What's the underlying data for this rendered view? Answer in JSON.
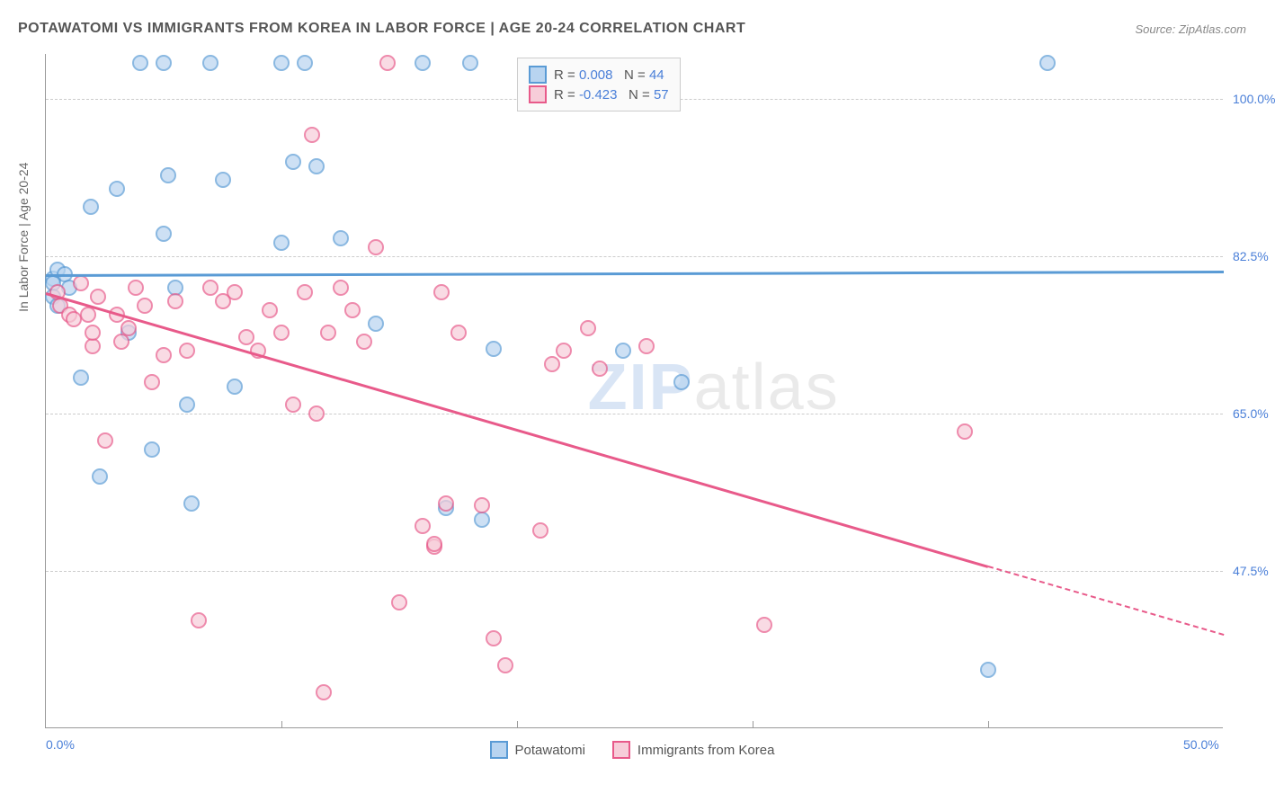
{
  "title": "POTAWATOMI VS IMMIGRANTS FROM KOREA IN LABOR FORCE | AGE 20-24 CORRELATION CHART",
  "source": "Source: ZipAtlas.com",
  "y_axis_label": "In Labor Force | Age 20-24",
  "watermark_zip": "ZIP",
  "watermark_atlas": "atlas",
  "chart": {
    "type": "scatter",
    "xlim": [
      0,
      50
    ],
    "ylim": [
      30,
      105
    ],
    "x_ticks": [
      0,
      50
    ],
    "x_tick_labels": [
      "0.0%",
      "50.0%"
    ],
    "y_ticks": [
      47.5,
      65.0,
      82.5,
      100.0
    ],
    "y_tick_labels": [
      "47.5%",
      "65.0%",
      "82.5%",
      "100.0%"
    ],
    "x_minor_ticks": [
      10,
      20,
      30,
      40
    ],
    "background_color": "#ffffff",
    "grid_color": "#cccccc",
    "axis_color": "#999999",
    "series": [
      {
        "name": "Potawatomi",
        "color_fill": "#b8d4f0",
        "color_stroke": "#5a9bd5",
        "r_value": "0.008",
        "n_value": "44",
        "trend": {
          "x1": 0,
          "y1": 80.5,
          "x2": 50,
          "y2": 80.9,
          "solid_end": 50
        },
        "points": [
          [
            0.3,
            80
          ],
          [
            0.3,
            79.5
          ],
          [
            0.3,
            78
          ],
          [
            0.5,
            77
          ],
          [
            0.5,
            81
          ],
          [
            0.8,
            80.5
          ],
          [
            1,
            79
          ],
          [
            1.5,
            69
          ],
          [
            1.9,
            88
          ],
          [
            2.3,
            58
          ],
          [
            3,
            90
          ],
          [
            3.5,
            74
          ],
          [
            4,
            104
          ],
          [
            4.5,
            61
          ],
          [
            5,
            104
          ],
          [
            5,
            85
          ],
          [
            5.2,
            91.5
          ],
          [
            5.5,
            79
          ],
          [
            6,
            66
          ],
          [
            6.2,
            55
          ],
          [
            7,
            104
          ],
          [
            7.5,
            91
          ],
          [
            8,
            68
          ],
          [
            10,
            104
          ],
          [
            10,
            84
          ],
          [
            10.5,
            93
          ],
          [
            11,
            104
          ],
          [
            11.5,
            92.5
          ],
          [
            12.5,
            84.5
          ],
          [
            14,
            75
          ],
          [
            16,
            104
          ],
          [
            17,
            54.5
          ],
          [
            18,
            104
          ],
          [
            18.5,
            53.2
          ],
          [
            19,
            72.2
          ],
          [
            24.5,
            72
          ],
          [
            27,
            68.5
          ],
          [
            40,
            36.5
          ],
          [
            42.5,
            104
          ]
        ]
      },
      {
        "name": "Immigrants from Korea",
        "color_fill": "#f7cdd9",
        "color_stroke": "#e85a8a",
        "r_value": "-0.423",
        "n_value": "57",
        "trend": {
          "x1": 0,
          "y1": 78.5,
          "x2": 50,
          "y2": 40.5,
          "solid_end": 40
        },
        "points": [
          [
            0.5,
            78.5
          ],
          [
            0.6,
            77
          ],
          [
            1,
            76
          ],
          [
            1.2,
            75.5
          ],
          [
            1.5,
            79.5
          ],
          [
            1.8,
            76
          ],
          [
            2,
            72.5
          ],
          [
            2,
            74
          ],
          [
            2.2,
            78
          ],
          [
            2.5,
            62
          ],
          [
            3,
            76
          ],
          [
            3.2,
            73
          ],
          [
            3.5,
            74.5
          ],
          [
            3.8,
            79
          ],
          [
            4.2,
            77
          ],
          [
            4.5,
            68.5
          ],
          [
            5,
            71.5
          ],
          [
            5.5,
            77.5
          ],
          [
            6,
            72
          ],
          [
            6.5,
            42
          ],
          [
            7,
            79
          ],
          [
            7.5,
            77.5
          ],
          [
            8,
            78.5
          ],
          [
            8.5,
            73.5
          ],
          [
            9,
            72
          ],
          [
            9.5,
            76.5
          ],
          [
            10,
            74
          ],
          [
            10.5,
            66
          ],
          [
            11,
            78.5
          ],
          [
            11.3,
            96
          ],
          [
            11.5,
            65
          ],
          [
            11.8,
            34
          ],
          [
            12,
            74
          ],
          [
            12.5,
            79
          ],
          [
            13,
            76.5
          ],
          [
            13.5,
            73
          ],
          [
            14,
            83.5
          ],
          [
            14.5,
            104
          ],
          [
            15,
            44
          ],
          [
            16,
            52.5
          ],
          [
            16.5,
            50.2
          ],
          [
            16.5,
            50.5
          ],
          [
            16.8,
            78.5
          ],
          [
            17,
            55
          ],
          [
            17.5,
            74
          ],
          [
            18.5,
            54.8
          ],
          [
            19,
            40
          ],
          [
            19.5,
            37
          ],
          [
            21,
            52
          ],
          [
            21.5,
            70.5
          ],
          [
            22,
            72
          ],
          [
            23,
            74.5
          ],
          [
            23.5,
            70
          ],
          [
            25.5,
            72.5
          ],
          [
            30.5,
            41.5
          ],
          [
            39,
            63
          ]
        ]
      }
    ],
    "stats_legend": {
      "r_label": "R = ",
      "n_label": "N = "
    },
    "bottom_legend_labels": [
      "Potawatomi",
      "Immigrants from Korea"
    ]
  }
}
